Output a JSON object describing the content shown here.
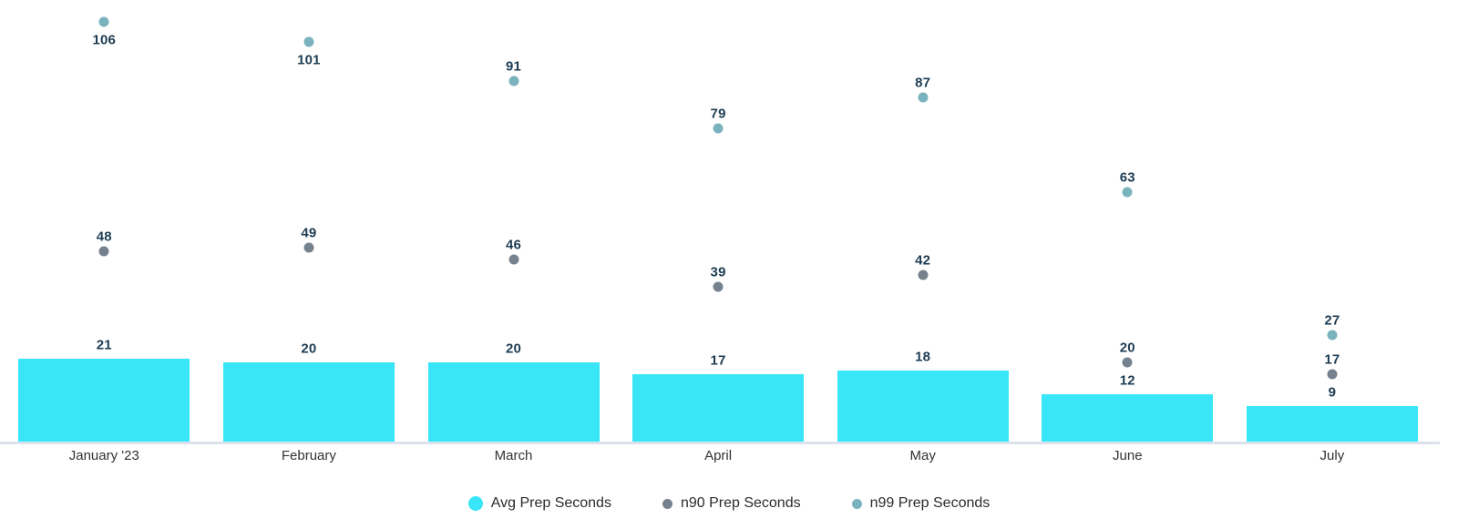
{
  "chart_data": {
    "type": "bar",
    "subtype": "bar-with-scatter-overlay",
    "categories": [
      "January '23",
      "February",
      "March",
      "April",
      "May",
      "June",
      "July"
    ],
    "series": [
      {
        "name": "Avg Prep Seconds",
        "mark": "bar",
        "color": "#38E6F7",
        "values": [
          21,
          20,
          20,
          17,
          18,
          12,
          9
        ]
      },
      {
        "name": "n90 Prep Seconds",
        "mark": "point",
        "color": "#75828D",
        "values": [
          48,
          49,
          46,
          39,
          42,
          20,
          17
        ]
      },
      {
        "name": "n99 Prep Seconds",
        "mark": "point",
        "color": "#7AB2BE",
        "values": [
          106,
          101,
          91,
          79,
          87,
          63,
          27
        ]
      }
    ],
    "title": "",
    "xlabel": "",
    "ylabel": "",
    "ylim": [
      0,
      111.5
    ],
    "grid": false,
    "y_axis_shown": false,
    "legend_position": "bottom",
    "value_labels_shown": true,
    "value_label_color": "#1D3C52",
    "axis_line_color": "#DCE1ED",
    "axis_label_color": "#333333",
    "background_color": "#FFFFFF"
  }
}
